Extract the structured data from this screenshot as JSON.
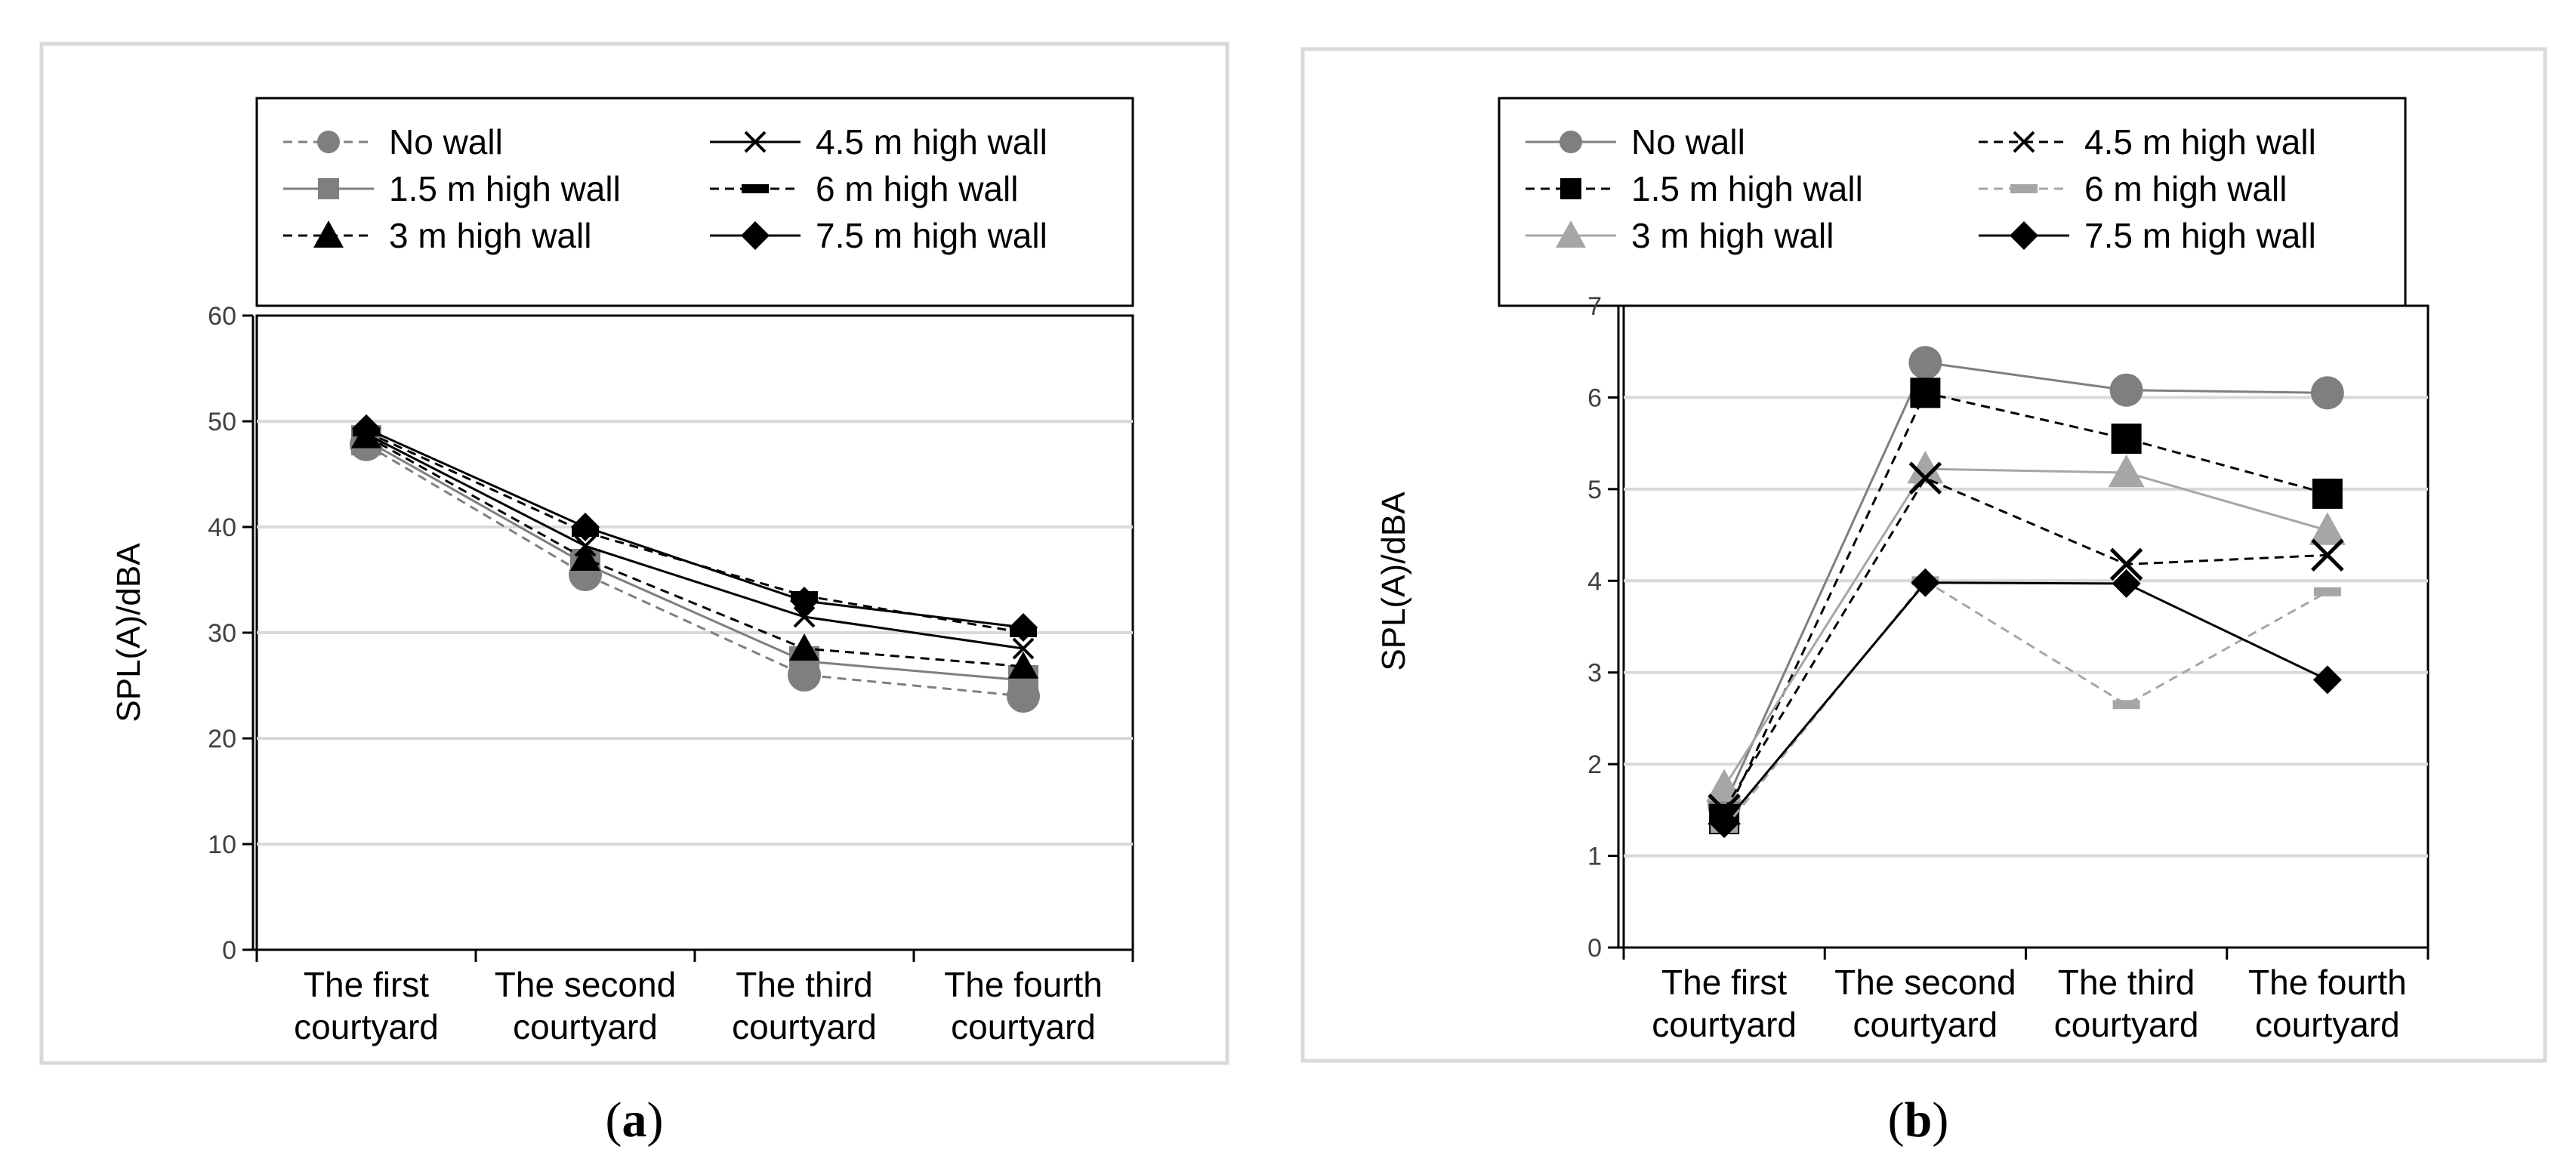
{
  "chart_data": [
    {
      "type": "line",
      "panel_label": "a",
      "title": "",
      "xlabel": "",
      "ylabel": "SPL(A)/dBA",
      "ylim": [
        0,
        60
      ],
      "yticks": [
        0,
        10,
        20,
        30,
        40,
        50,
        60
      ],
      "categories": [
        [
          "The first",
          "courtyard"
        ],
        [
          "The second",
          "courtyard"
        ],
        [
          "The third",
          "courtyard"
        ],
        [
          "The fourth",
          "courtyard"
        ]
      ],
      "grid": true,
      "legend_position": "top",
      "series": [
        {
          "name": "No wall",
          "values": [
            47.8,
            35.5,
            26.0,
            24.0
          ],
          "marker": "circle",
          "dash": "dashed",
          "color": "#7f7f7f",
          "marker_size": "large"
        },
        {
          "name": "1.5 m high wall",
          "values": [
            48.2,
            36.5,
            27.3,
            25.5
          ],
          "marker": "square",
          "dash": "solid",
          "color": "#7f7f7f",
          "marker_size": "large"
        },
        {
          "name": "3 m high wall",
          "values": [
            48.6,
            37.0,
            28.5,
            26.8
          ],
          "marker": "triangle",
          "dash": "dashed",
          "color": "#000000",
          "marker_size": "normal"
        },
        {
          "name": "4.5 m high wall",
          "values": [
            48.8,
            38.2,
            31.5,
            28.5
          ],
          "marker": "x",
          "dash": "solid",
          "color": "#000000",
          "marker_size": "normal"
        },
        {
          "name": "6 m high wall",
          "values": [
            49.0,
            39.5,
            33.5,
            30.0
          ],
          "marker": "dash",
          "dash": "dashed",
          "color": "#000000",
          "marker_size": "normal"
        },
        {
          "name": "7.5 m high wall",
          "values": [
            49.3,
            40.0,
            33.0,
            30.5
          ],
          "marker": "diamond",
          "dash": "solid",
          "color": "#000000",
          "marker_size": "normal"
        }
      ]
    },
    {
      "type": "line",
      "panel_label": "b",
      "title": "",
      "xlabel": "",
      "ylabel": "SPL(A)/dBA",
      "ylim": [
        0,
        7
      ],
      "yticks": [
        0,
        1,
        2,
        3,
        4,
        5,
        6,
        7
      ],
      "categories": [
        [
          "The first",
          "courtyard"
        ],
        [
          "The second",
          "courtyard"
        ],
        [
          "The third",
          "courtyard"
        ],
        [
          "The fourth",
          "courtyard"
        ]
      ],
      "grid": true,
      "legend_position": "top",
      "series": [
        {
          "name": "No wall",
          "values": [
            1.55,
            6.38,
            6.08,
            6.05
          ],
          "marker": "circle",
          "dash": "solid",
          "color": "#7f7f7f",
          "marker_size": "large"
        },
        {
          "name": "1.5 m high wall",
          "values": [
            1.4,
            6.05,
            5.55,
            4.95
          ],
          "marker": "square",
          "dash": "dashed",
          "color": "#000000",
          "marker_size": "large"
        },
        {
          "name": "3 m high wall",
          "values": [
            1.75,
            5.22,
            5.18,
            4.55
          ],
          "marker": "triangle",
          "dash": "solid",
          "color": "#a6a6a6",
          "marker_size": "large"
        },
        {
          "name": "4.5 m high wall",
          "values": [
            1.5,
            5.12,
            4.18,
            4.28
          ],
          "marker": "x",
          "dash": "dashed",
          "color": "#000000",
          "marker_size": "large"
        },
        {
          "name": "6 m high wall",
          "values": [
            1.3,
            4.0,
            2.65,
            3.88
          ],
          "marker": "dash",
          "dash": "dashed",
          "color": "#a6a6a6",
          "marker_size": "normal"
        },
        {
          "name": "7.5 m high wall",
          "values": [
            1.35,
            3.98,
            3.97,
            2.92
          ],
          "marker": "diamond",
          "dash": "solid",
          "color": "#000000",
          "marker_size": "normal"
        }
      ]
    }
  ]
}
